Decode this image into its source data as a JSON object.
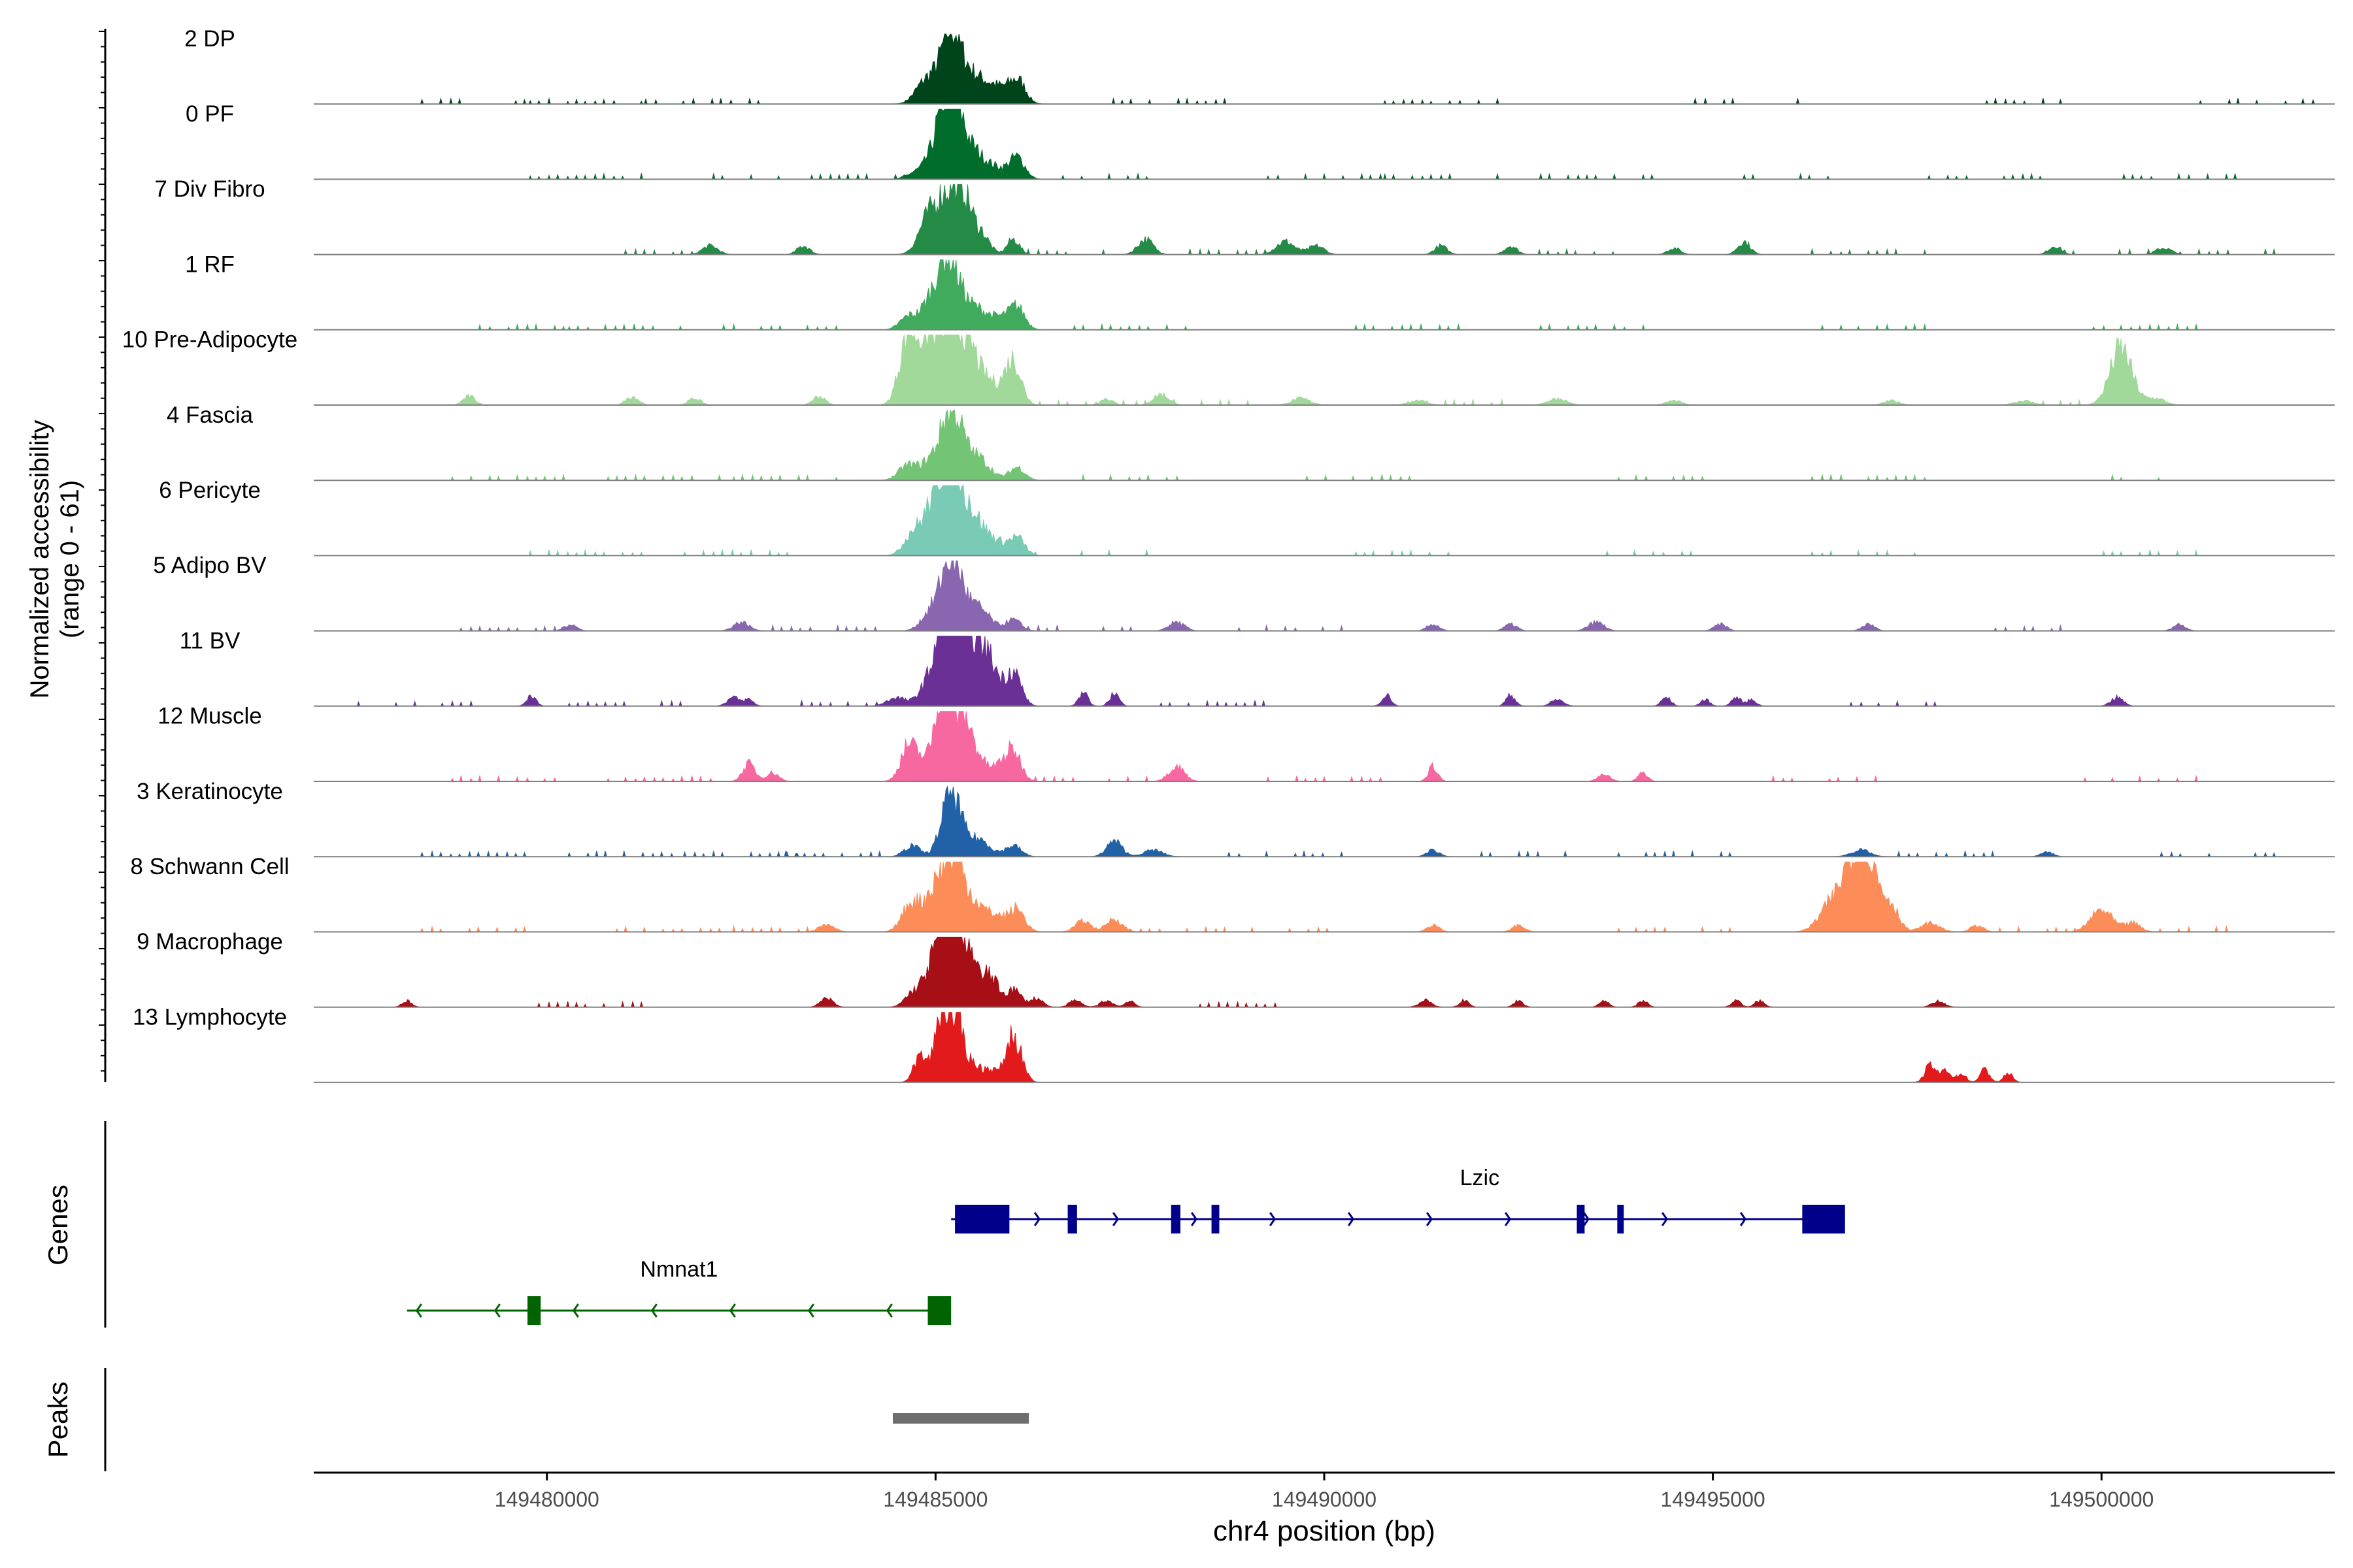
{
  "chart_data": {
    "type": "area",
    "title": "",
    "xlabel": "chr4 position (bp)",
    "ylabel_line1": "Normalized accessibility",
    "ylabel_line2": "(range 0 - 61)",
    "xlim": [
      149477000,
      149503000
    ],
    "ylim": [
      0,
      61
    ],
    "x_ticks": [
      149480000,
      149485000,
      149490000,
      149495000,
      149500000
    ],
    "x_tick_labels": [
      "149480000",
      "149485000",
      "149490000",
      "149495000",
      "149500000"
    ],
    "series": [
      {
        "name": "2 DP",
        "color": "#00441b",
        "peaks": [
          [
            149484750,
            2,
            100
          ],
          [
            149484900,
            10,
            120
          ],
          [
            149485200,
            34,
            130
          ],
          [
            149485500,
            12,
            140
          ],
          [
            149485750,
            6,
            110
          ],
          [
            149486000,
            9,
            120
          ],
          [
            149486100,
            4,
            80
          ]
        ],
        "noise": [
          149479000,
          149480500,
          149482000,
          149488000,
          149491500,
          149495500,
          149499000,
          149502000
        ]
      },
      {
        "name": "0 PF",
        "color": "#006d2c",
        "peaks": [
          [
            149484750,
            3,
            120
          ],
          [
            149485000,
            10,
            120
          ],
          [
            149485200,
            42,
            130
          ],
          [
            149485500,
            12,
            150
          ],
          [
            149485800,
            4,
            120
          ],
          [
            149486050,
            10,
            100
          ]
        ],
        "noise": [
          149480500,
          149482500,
          149484000,
          149487000,
          149490000,
          149491500,
          149493500,
          149496000,
          149498500,
          149501000
        ]
      },
      {
        "name": "7 Div Fibro",
        "color": "#238b45",
        "peaks": [
          [
            149484850,
            6,
            100
          ],
          [
            149485100,
            26,
            180
          ],
          [
            149485350,
            22,
            120
          ],
          [
            149485600,
            8,
            100
          ],
          [
            149486000,
            7,
            80
          ],
          [
            149482100,
            4,
            100
          ],
          [
            149483300,
            4,
            80
          ],
          [
            149487700,
            7,
            100
          ],
          [
            149489500,
            6,
            120
          ],
          [
            149489900,
            4,
            100
          ],
          [
            149491500,
            4,
            80
          ],
          [
            149492400,
            4,
            80
          ],
          [
            149494500,
            3,
            80
          ],
          [
            149495400,
            6,
            80
          ],
          [
            149499400,
            4,
            80
          ],
          [
            149500800,
            3,
            100
          ]
        ],
        "noise": [
          149481500,
          149486800,
          149489000,
          149493000,
          149497000,
          149500000,
          149501500
        ]
      },
      {
        "name": "1 RF",
        "color": "#41ab5d",
        "peaks": [
          [
            149484650,
            6,
            110
          ],
          [
            149484900,
            8,
            110
          ],
          [
            149485150,
            34,
            140
          ],
          [
            149485500,
            10,
            180
          ],
          [
            149485850,
            4,
            120
          ],
          [
            149486050,
            10,
            100
          ]
        ],
        "noise": [
          149479500,
          149481000,
          149483000,
          149487500,
          149491000,
          149493500,
          149497000,
          149500500
        ]
      },
      {
        "name": "10 Pre-Adipocyte",
        "color": "#a1d99b",
        "peaks": [
          [
            149484650,
            34,
            110
          ],
          [
            149484900,
            28,
            110
          ],
          [
            149485150,
            38,
            120
          ],
          [
            149485400,
            28,
            130
          ],
          [
            149485700,
            10,
            150
          ],
          [
            149486000,
            20,
            100
          ],
          [
            149479000,
            4,
            80
          ],
          [
            149481100,
            4,
            80
          ],
          [
            149481900,
            3,
            80
          ],
          [
            149483500,
            4,
            80
          ],
          [
            149487200,
            3,
            80
          ],
          [
            149487900,
            5,
            100
          ],
          [
            149489700,
            3,
            120
          ],
          [
            149491200,
            2,
            120
          ],
          [
            149493000,
            3,
            120
          ],
          [
            149494500,
            2,
            100
          ],
          [
            149497300,
            2,
            100
          ],
          [
            149499000,
            2,
            120
          ],
          [
            149500250,
            26,
            140
          ],
          [
            149500700,
            3,
            120
          ]
        ],
        "noise": [
          149486700,
          149488300,
          149491800,
          149499600
        ]
      },
      {
        "name": "4 Fascia",
        "color": "#74c476",
        "peaks": [
          [
            149484650,
            7,
            120
          ],
          [
            149484900,
            6,
            100
          ],
          [
            149485200,
            34,
            140
          ],
          [
            149485550,
            10,
            150
          ],
          [
            149486050,
            6,
            100
          ]
        ],
        "noise": [
          149479500,
          149481500,
          149483000,
          149487500,
          149490500,
          149494500,
          149497000,
          149500500
        ]
      },
      {
        "name": "6 Pericyte",
        "color": "#7acbb6",
        "peaks": [
          [
            149484700,
            10,
            110
          ],
          [
            149484950,
            18,
            120
          ],
          [
            149485200,
            44,
            140
          ],
          [
            149485500,
            16,
            150
          ],
          [
            149485800,
            5,
            120
          ],
          [
            149486050,
            8,
            100
          ]
        ],
        "noise": [
          149480500,
          149482500,
          149487000,
          149491000,
          149494000,
          149497000,
          149500500
        ]
      },
      {
        "name": "5 Adipo BV",
        "color": "#8a66b0",
        "peaks": [
          [
            149484900,
            6,
            110
          ],
          [
            149485200,
            34,
            140
          ],
          [
            149485550,
            10,
            150
          ],
          [
            149486000,
            5,
            100
          ],
          [
            149480300,
            3,
            80
          ],
          [
            149482500,
            4,
            100
          ],
          [
            149488100,
            4,
            100
          ],
          [
            149491400,
            3,
            80
          ],
          [
            149492400,
            3,
            80
          ],
          [
            149493500,
            4,
            100
          ],
          [
            149495100,
            3,
            80
          ],
          [
            149497000,
            3,
            80
          ],
          [
            149501000,
            3,
            80
          ]
        ],
        "noise": [
          149479500,
          149483500,
          149486800,
          149489500,
          149499000
        ]
      },
      {
        "name": "11 BV",
        "color": "#6a3095",
        "peaks": [
          [
            149484500,
            4,
            120
          ],
          [
            149484850,
            6,
            100
          ],
          [
            149485150,
            48,
            140
          ],
          [
            149485450,
            30,
            150
          ],
          [
            149485700,
            16,
            120
          ],
          [
            149486000,
            16,
            100
          ],
          [
            149479800,
            5,
            60
          ],
          [
            149482400,
            4,
            80
          ],
          [
            149482600,
            3,
            60
          ],
          [
            149486900,
            6,
            60
          ],
          [
            149487300,
            6,
            60
          ],
          [
            149490800,
            5,
            60
          ],
          [
            149492400,
            5,
            60
          ],
          [
            149493000,
            3,
            80
          ],
          [
            149494400,
            4,
            60
          ],
          [
            149494900,
            3,
            60
          ],
          [
            149495300,
            4,
            60
          ],
          [
            149495500,
            3,
            60
          ],
          [
            149500200,
            4,
            80
          ]
        ],
        "noise": [
          149478300,
          149481000,
          149484000,
          149488500,
          149497500
        ]
      },
      {
        "name": "12 Muscle",
        "color": "#f768a1",
        "peaks": [
          [
            149484650,
            16,
            100
          ],
          [
            149484850,
            8,
            100
          ],
          [
            149485100,
            46,
            100
          ],
          [
            149485350,
            30,
            100
          ],
          [
            149485550,
            10,
            100
          ],
          [
            149485800,
            6,
            100
          ],
          [
            149486000,
            14,
            100
          ],
          [
            149482600,
            8,
            80
          ],
          [
            149482900,
            4,
            80
          ],
          [
            149488100,
            7,
            100
          ],
          [
            149491400,
            7,
            60
          ],
          [
            149493600,
            3,
            80
          ],
          [
            149494100,
            4,
            60
          ]
        ],
        "noise": [
          149479500,
          149481500,
          149487000,
          149490000,
          149496500,
          149500500
        ]
      },
      {
        "name": "3 Keratinocyte",
        "color": "#2061a8",
        "peaks": [
          [
            149484700,
            5,
            100
          ],
          [
            149485200,
            30,
            120
          ],
          [
            149485550,
            8,
            150
          ],
          [
            149486000,
            5,
            100
          ],
          [
            149487300,
            7,
            100
          ],
          [
            149487800,
            3,
            120
          ],
          [
            149491400,
            3,
            80
          ],
          [
            149496900,
            3,
            120
          ],
          [
            149499300,
            2,
            80
          ]
        ],
        "noise": [
          149479000,
          149481000,
          149482500,
          149483800,
          149489500,
          149492500,
          149494500,
          149498000,
          149501500
        ]
      },
      {
        "name": "8 Schwann Cell",
        "color": "#fc8d59",
        "peaks": [
          [
            149484700,
            14,
            120
          ],
          [
            149484950,
            12,
            100
          ],
          [
            149485200,
            36,
            140
          ],
          [
            149485500,
            12,
            150
          ],
          [
            149485800,
            6,
            120
          ],
          [
            149486050,
            10,
            100
          ],
          [
            149483600,
            3,
            100
          ],
          [
            149486900,
            5,
            100
          ],
          [
            149487300,
            6,
            100
          ],
          [
            149491400,
            3,
            80
          ],
          [
            149492500,
            3,
            80
          ],
          [
            149496500,
            10,
            150
          ],
          [
            149496900,
            48,
            180
          ],
          [
            149497300,
            10,
            100
          ],
          [
            149497800,
            4,
            120
          ],
          [
            149498400,
            3,
            80
          ],
          [
            149500000,
            10,
            140
          ],
          [
            149500400,
            4,
            100
          ]
        ],
        "noise": [
          149479000,
          149481500,
          149483000,
          149488000,
          149489800,
          149494500,
          149499300,
          149501000
        ]
      },
      {
        "name": "9 Macrophage",
        "color": "#a50f15",
        "peaks": [
          [
            149484700,
            6,
            100
          ],
          [
            149484900,
            10,
            100
          ],
          [
            149485150,
            46,
            130
          ],
          [
            149485400,
            26,
            120
          ],
          [
            149485700,
            14,
            100
          ],
          [
            149486000,
            8,
            100
          ],
          [
            149486300,
            4,
            80
          ],
          [
            149478200,
            3,
            60
          ],
          [
            149483600,
            4,
            80
          ],
          [
            149486800,
            3,
            80
          ],
          [
            149487200,
            3,
            80
          ],
          [
            149487500,
            3,
            60
          ],
          [
            149491300,
            3,
            80
          ],
          [
            149491800,
            3,
            60
          ],
          [
            149492500,
            3,
            60
          ],
          [
            149493600,
            3,
            60
          ],
          [
            149494100,
            3,
            60
          ],
          [
            149495300,
            3,
            60
          ],
          [
            149495600,
            3,
            60
          ],
          [
            149497900,
            3,
            80
          ]
        ],
        "noise": [
          149480500,
          149489000
        ]
      },
      {
        "name": "13 Lymphocyte",
        "color": "#e31a1c",
        "peaks": [
          [
            149484800,
            12,
            80
          ],
          [
            149485100,
            36,
            100
          ],
          [
            149485300,
            24,
            80
          ],
          [
            149485500,
            8,
            80
          ],
          [
            149485700,
            6,
            80
          ],
          [
            149486000,
            22,
            100
          ],
          [
            149497800,
            8,
            70
          ],
          [
            149498000,
            6,
            60
          ],
          [
            149498200,
            4,
            60
          ],
          [
            149498500,
            6,
            60
          ],
          [
            149498800,
            4,
            60
          ]
        ],
        "noise": []
      }
    ],
    "genes": [
      {
        "name": "Lzic",
        "strand": "+",
        "color": "#00008b",
        "start": 149485200,
        "end": 149496700,
        "exons": [
          [
            149485250,
            149485950
          ],
          [
            149486700,
            149486820
          ],
          [
            149488030,
            149488150
          ],
          [
            149488550,
            149488650
          ],
          [
            149493250,
            149493350
          ],
          [
            149493770,
            149493850
          ],
          [
            149496150,
            149496700
          ]
        ]
      },
      {
        "name": "Nmnat1",
        "strand": "-",
        "color": "#006400",
        "start": 149478200,
        "end": 149485200,
        "exons": [
          [
            149479750,
            149479920
          ],
          [
            149484900,
            149485200
          ]
        ]
      }
    ],
    "peaks_track": [
      [
        149484450,
        149486200
      ]
    ],
    "genes_label": "Genes",
    "peaks_label": "Peaks"
  }
}
